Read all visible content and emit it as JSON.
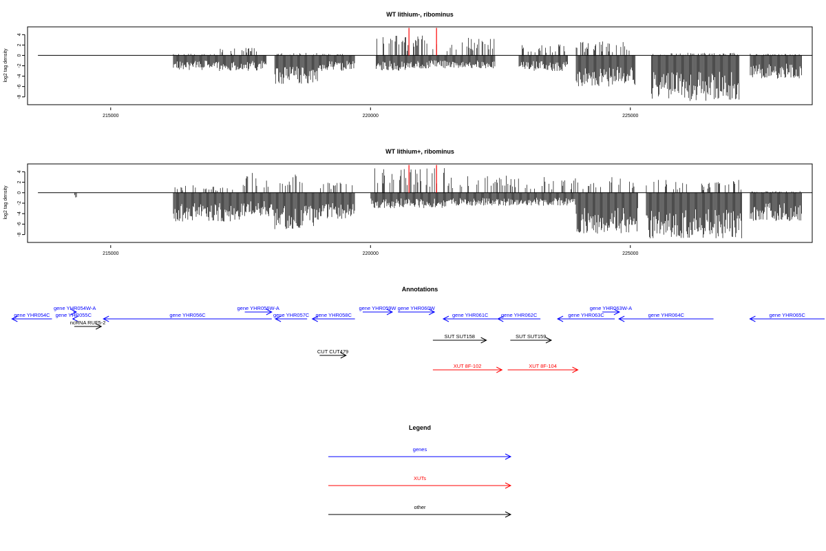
{
  "colors": {
    "axis": "#000000",
    "genes": "#0000ff",
    "xuts": "#ff0000",
    "other": "#000000",
    "highlight": "#ff0000"
  },
  "chart_data": [
    {
      "type": "bar",
      "title": "WT lithium-, ribominus",
      "xlabel": "",
      "ylabel": "log2 tag density",
      "xlim": [
        213400,
        228500
      ],
      "ylim": [
        -9.5,
        5.5
      ],
      "x_ticks": [
        215000,
        220000,
        225000
      ],
      "y_ticks": [
        4,
        2,
        0,
        -2,
        -4,
        -6,
        -8
      ],
      "baseline": {
        "from": 213600,
        "to": 228500,
        "y": 0
      },
      "highlight_x": [
        220740,
        221270
      ],
      "regions": [
        {
          "from": 216200,
          "to": 217000,
          "pos": 0.3,
          "neg": -2.8
        },
        {
          "from": 217000,
          "to": 218000,
          "pos": 1.5,
          "neg": -3.0
        },
        {
          "from": 218150,
          "to": 219000,
          "pos": 0.5,
          "neg": -5.5
        },
        {
          "from": 219000,
          "to": 219700,
          "pos": 0.3,
          "neg": -3.0
        },
        {
          "from": 220100,
          "to": 220700,
          "pos": 4.0,
          "neg": -3.0
        },
        {
          "from": 220700,
          "to": 221700,
          "pos": 4.0,
          "neg": -2.5
        },
        {
          "from": 221700,
          "to": 222400,
          "pos": 3.5,
          "neg": -2.5
        },
        {
          "from": 222850,
          "to": 223800,
          "pos": 2.2,
          "neg": -3.0
        },
        {
          "from": 223950,
          "to": 225100,
          "pos": 2.8,
          "neg": -6.0
        },
        {
          "from": 225400,
          "to": 227100,
          "pos": 0.5,
          "neg": -8.8
        },
        {
          "from": 227300,
          "to": 228300,
          "pos": 0.3,
          "neg": -4.5
        }
      ]
    },
    {
      "type": "bar",
      "title": "WT lithium+, ribominus",
      "xlabel": "",
      "ylabel": "log2 tag density",
      "xlim": [
        213400,
        228500
      ],
      "ylim": [
        -9.5,
        5.5
      ],
      "x_ticks": [
        215000,
        220000,
        225000
      ],
      "y_ticks": [
        4,
        2,
        0,
        -2,
        -4,
        -6,
        -8
      ],
      "baseline": {
        "from": 213600,
        "to": 228500,
        "y": 0
      },
      "highlight_x": [
        220740,
        221270
      ],
      "regions": [
        {
          "from": 214300,
          "to": 214350,
          "pos": 0,
          "neg": -1.0
        },
        {
          "from": 216200,
          "to": 217600,
          "pos": 1.5,
          "neg": -5.5
        },
        {
          "from": 217600,
          "to": 218150,
          "pos": 4.0,
          "neg": -4.5
        },
        {
          "from": 218150,
          "to": 219000,
          "pos": 3.5,
          "neg": -7.0
        },
        {
          "from": 219000,
          "to": 219700,
          "pos": 2.0,
          "neg": -5.0
        },
        {
          "from": 220000,
          "to": 221500,
          "pos": 5.0,
          "neg": -3.0
        },
        {
          "from": 221500,
          "to": 223000,
          "pos": 3.5,
          "neg": -2.5
        },
        {
          "from": 223000,
          "to": 223950,
          "pos": 3.0,
          "neg": -2.5
        },
        {
          "from": 223950,
          "to": 225150,
          "pos": 3.2,
          "neg": -8.0
        },
        {
          "from": 225300,
          "to": 227150,
          "pos": 2.5,
          "neg": -8.8
        },
        {
          "from": 227300,
          "to": 228300,
          "pos": 0.3,
          "neg": -5.5
        }
      ]
    }
  ],
  "annotations": {
    "title": "Annotations",
    "items": [
      {
        "label": "gene YHR054C",
        "kind": "genes",
        "strand": "-",
        "row": 0
      },
      {
        "label": "gene YHR054W-A",
        "kind": "genes",
        "strand": "+",
        "row": -1
      },
      {
        "label": "gene YHR055C",
        "kind": "genes",
        "strand": "-",
        "row": 0
      },
      {
        "label": "ncRNA RUF5-2",
        "kind": "other",
        "strand": "+",
        "row": 1
      },
      {
        "label": "gene YHR056C",
        "kind": "genes",
        "strand": "-",
        "row": 0
      },
      {
        "label": "gene YHR056W-A",
        "kind": "genes",
        "strand": "+",
        "row": -1
      },
      {
        "label": "gene YHR057C",
        "kind": "genes",
        "strand": "-",
        "row": 0
      },
      {
        "label": "gene YHR058C",
        "kind": "genes",
        "strand": "-",
        "row": 0
      },
      {
        "label": "gene YHR059W",
        "kind": "genes",
        "strand": "+",
        "row": -1
      },
      {
        "label": "gene YHR060W",
        "kind": "genes",
        "strand": "+",
        "row": -1
      },
      {
        "label": "gene YHR061C",
        "kind": "genes",
        "strand": "-",
        "row": 0
      },
      {
        "label": "gene YHR062C",
        "kind": "genes",
        "strand": "-",
        "row": 0
      },
      {
        "label": "gene YHR063C",
        "kind": "genes",
        "strand": "-",
        "row": 0
      },
      {
        "label": "gene YHR063W-A",
        "kind": "genes",
        "strand": "+",
        "row": -1
      },
      {
        "label": "gene YHR064C",
        "kind": "genes",
        "strand": "-",
        "row": 0
      },
      {
        "label": "gene YHR065C",
        "kind": "genes",
        "strand": "-",
        "row": 0
      },
      {
        "label": "SUT SUT158",
        "kind": "other",
        "strand": "+",
        "row": 2
      },
      {
        "label": "SUT SUT159",
        "kind": "other",
        "strand": "+",
        "row": 2
      },
      {
        "label": "CUT CUT479",
        "kind": "other",
        "strand": "+",
        "row": 3
      },
      {
        "label": "XUT 8F-102",
        "kind": "xuts",
        "strand": "+",
        "row": 4
      },
      {
        "label": "XUT 8F-104",
        "kind": "xuts",
        "strand": "+",
        "row": 4
      }
    ]
  },
  "legend": {
    "title": "Legend",
    "entries": [
      {
        "label": "genes",
        "kind": "genes"
      },
      {
        "label": "XUTs",
        "kind": "xuts"
      },
      {
        "label": "other",
        "kind": "other"
      }
    ]
  }
}
